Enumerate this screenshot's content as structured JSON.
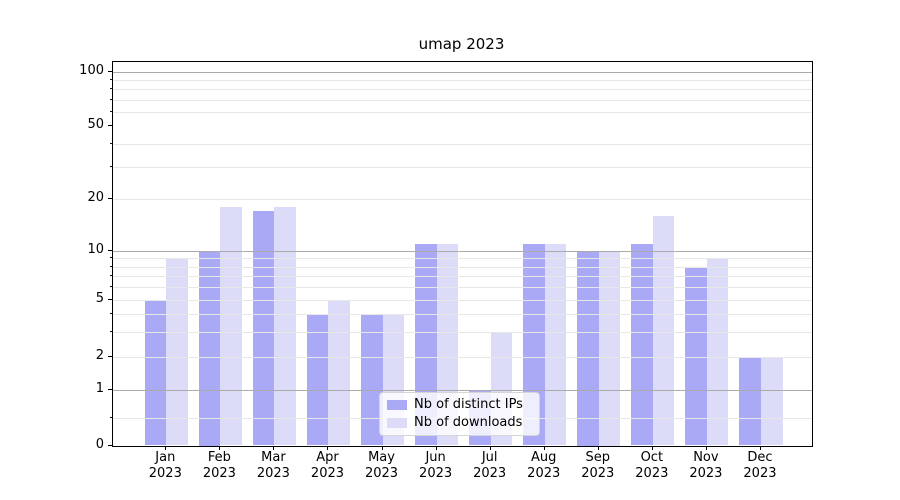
{
  "chart_data": {
    "type": "bar",
    "title": "umap 2023",
    "categories": [
      "Jan 2023",
      "Feb 2023",
      "Mar 2023",
      "Apr 2023",
      "May 2023",
      "Jun 2023",
      "Jul 2023",
      "Aug 2023",
      "Sep 2023",
      "Oct 2023",
      "Nov 2023",
      "Dec 2023"
    ],
    "months": [
      "Jan",
      "Feb",
      "Mar",
      "Apr",
      "May",
      "Jun",
      "Jul",
      "Aug",
      "Sep",
      "Oct",
      "Nov",
      "Dec"
    ],
    "year": "2023",
    "series": [
      {
        "name": "Nb of distinct IPs",
        "color": "#a9a9f6",
        "values": [
          5,
          10,
          17,
          4,
          4,
          11,
          1,
          11,
          10,
          11,
          8,
          2
        ]
      },
      {
        "name": "Nb of downloads",
        "color": "#dcdcf9",
        "values": [
          9,
          18,
          18,
          5,
          4,
          11,
          3,
          11,
          10,
          16,
          9,
          2
        ]
      }
    ],
    "xlabel": "",
    "ylabel": "",
    "yscale": "symlog",
    "yticks": [
      0,
      1,
      2,
      5,
      10,
      20,
      50,
      100
    ],
    "ylim": [
      0,
      113
    ],
    "grid": "on",
    "grid_over_bars": true,
    "legend_position": "lower center"
  },
  "colors": {
    "major_grid": "#ababab",
    "minor_grid": "#e7e7e7",
    "axis": "#000000",
    "background": "#ffffff",
    "text": "#000000"
  }
}
